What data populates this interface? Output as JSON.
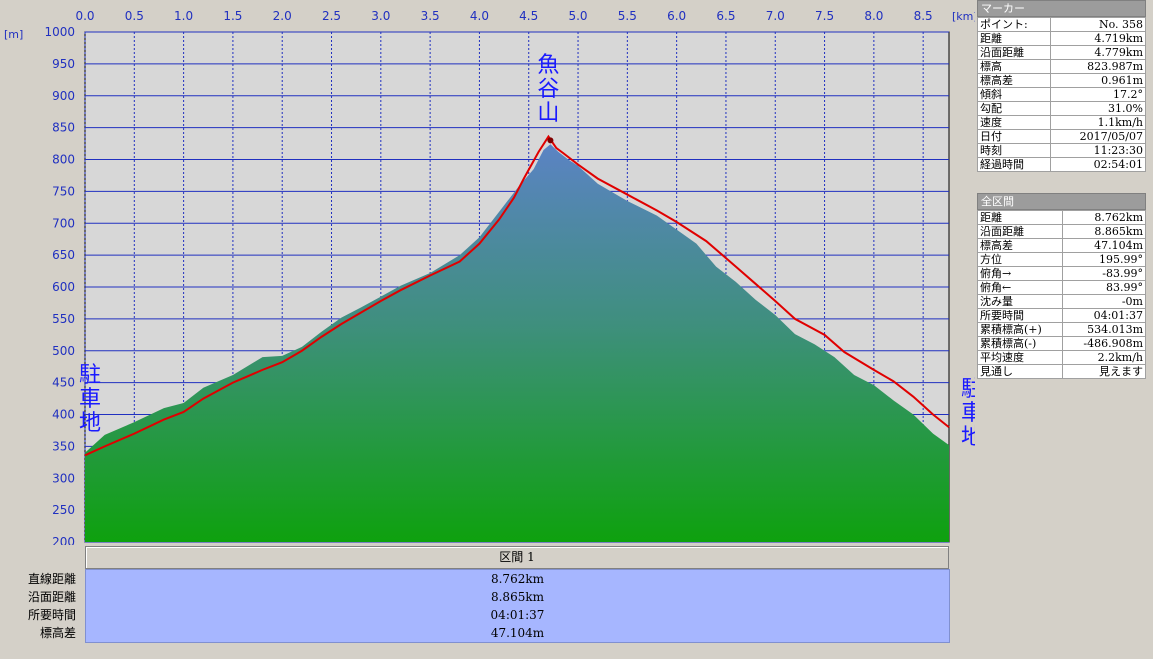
{
  "chart_data": {
    "type": "area",
    "x_unit": "[km]",
    "y_unit": "[m]",
    "xlim": [
      0,
      8.762
    ],
    "ylim": [
      200,
      1000
    ],
    "x_ticks": [
      "0.0",
      "0.5",
      "1.0",
      "1.5",
      "2.0",
      "2.5",
      "3.0",
      "3.5",
      "4.0",
      "4.5",
      "5.0",
      "5.5",
      "6.0",
      "6.5",
      "7.0",
      "7.5",
      "8.0",
      "8.5"
    ],
    "y_ticks": [
      "1000",
      "950",
      "900",
      "850",
      "800",
      "750",
      "700",
      "650",
      "600",
      "550",
      "500",
      "450",
      "400",
      "350",
      "300",
      "250",
      "200"
    ],
    "grid": true,
    "series": [
      {
        "name": "terrain",
        "color": "#2e8b57",
        "points": [
          [
            0,
            340
          ],
          [
            0.2,
            368
          ],
          [
            0.5,
            388
          ],
          [
            0.8,
            410
          ],
          [
            1.0,
            418
          ],
          [
            1.2,
            442
          ],
          [
            1.5,
            462
          ],
          [
            1.8,
            490
          ],
          [
            2.0,
            492
          ],
          [
            2.2,
            506
          ],
          [
            2.4,
            530
          ],
          [
            2.6,
            552
          ],
          [
            2.8,
            568
          ],
          [
            3.0,
            585
          ],
          [
            3.2,
            602
          ],
          [
            3.5,
            622
          ],
          [
            3.8,
            650
          ],
          [
            4.0,
            678
          ],
          [
            4.2,
            718
          ],
          [
            4.4,
            758
          ],
          [
            4.55,
            785
          ],
          [
            4.65,
            815
          ],
          [
            4.72,
            824
          ],
          [
            4.8,
            812
          ],
          [
            4.9,
            800
          ],
          [
            5.0,
            790
          ],
          [
            5.2,
            762
          ],
          [
            5.5,
            735
          ],
          [
            5.8,
            712
          ],
          [
            6.0,
            690
          ],
          [
            6.2,
            668
          ],
          [
            6.4,
            632
          ],
          [
            6.6,
            608
          ],
          [
            6.8,
            580
          ],
          [
            7.0,
            556
          ],
          [
            7.2,
            526
          ],
          [
            7.4,
            510
          ],
          [
            7.6,
            490
          ],
          [
            7.8,
            462
          ],
          [
            8.0,
            446
          ],
          [
            8.2,
            422
          ],
          [
            8.4,
            400
          ],
          [
            8.6,
            370
          ],
          [
            8.762,
            352
          ]
        ]
      },
      {
        "name": "track",
        "color": "#e00000",
        "points": [
          [
            0,
            336
          ],
          [
            0.2,
            350
          ],
          [
            0.5,
            370
          ],
          [
            0.8,
            392
          ],
          [
            1.0,
            404
          ],
          [
            1.2,
            425
          ],
          [
            1.5,
            450
          ],
          [
            1.8,
            470
          ],
          [
            2.0,
            482
          ],
          [
            2.2,
            500
          ],
          [
            2.4,
            522
          ],
          [
            2.6,
            542
          ],
          [
            2.8,
            560
          ],
          [
            3.0,
            578
          ],
          [
            3.2,
            595
          ],
          [
            3.5,
            618
          ],
          [
            3.8,
            640
          ],
          [
            4.0,
            668
          ],
          [
            4.2,
            706
          ],
          [
            4.35,
            740
          ],
          [
            4.45,
            770
          ],
          [
            4.6,
            812
          ],
          [
            4.7,
            836
          ],
          [
            4.78,
            818
          ],
          [
            4.85,
            810
          ],
          [
            5.0,
            792
          ],
          [
            5.2,
            770
          ],
          [
            5.5,
            745
          ],
          [
            5.8,
            720
          ],
          [
            6.0,
            702
          ],
          [
            6.3,
            672
          ],
          [
            6.6,
            632
          ],
          [
            6.8,
            605
          ],
          [
            7.0,
            578
          ],
          [
            7.2,
            550
          ],
          [
            7.5,
            525
          ],
          [
            7.7,
            498
          ],
          [
            8.0,
            470
          ],
          [
            8.2,
            452
          ],
          [
            8.4,
            428
          ],
          [
            8.6,
            400
          ],
          [
            8.762,
            380
          ]
        ]
      }
    ],
    "annotations": [
      {
        "text": "魚谷山",
        "x": 4.72,
        "position": "top"
      },
      {
        "text": "駐車地",
        "x": 0,
        "position": "left"
      },
      {
        "text": "駐車地",
        "x": 8.762,
        "position": "right"
      }
    ],
    "colors": {
      "plot_bg": "#d7d7d7",
      "grid": "#2030c0",
      "axis_text": "#2030c0",
      "label": "#1a1aff"
    }
  },
  "marker_panel": {
    "title": "マーカー",
    "rows": [
      {
        "k": "ポイント:",
        "v": "No. 358"
      },
      {
        "k": "距離",
        "v": "4.719km"
      },
      {
        "k": "沿面距離",
        "v": "4.779km"
      },
      {
        "k": "標高",
        "v": "823.987m"
      },
      {
        "k": "標高差",
        "v": "0.961m"
      },
      {
        "k": "傾斜",
        "v": "17.2°"
      },
      {
        "k": "勾配",
        "v": "31.0%"
      },
      {
        "k": "速度",
        "v": "1.1km/h"
      },
      {
        "k": "日付",
        "v": "2017/05/07"
      },
      {
        "k": "時刻",
        "v": "11:23:30"
      },
      {
        "k": "経過時間",
        "v": "02:54:01"
      }
    ]
  },
  "all_panel": {
    "title": "全区間",
    "rows": [
      {
        "k": "距離",
        "v": "8.762km"
      },
      {
        "k": "沿面距離",
        "v": "8.865km"
      },
      {
        "k": "標高差",
        "v": "47.104m"
      },
      {
        "k": "方位",
        "v": "195.99°"
      },
      {
        "k": "俯角→",
        "v": "-83.99°"
      },
      {
        "k": "俯角←",
        "v": "83.99°"
      },
      {
        "k": "沈み量",
        "v": "-0m"
      },
      {
        "k": "所要時間",
        "v": "04:01:37"
      },
      {
        "k": "累積標高(+)",
        "v": "534.013m"
      },
      {
        "k": "累積標高(-)",
        "v": "-486.908m"
      },
      {
        "k": "平均速度",
        "v": "2.2km/h"
      },
      {
        "k": "見通し",
        "v": "見えます"
      }
    ]
  },
  "section": {
    "header": "区間 1",
    "rows": [
      {
        "k": "直線距離",
        "v": "8.762km"
      },
      {
        "k": "沿面距離",
        "v": "8.865km"
      },
      {
        "k": "所要時間",
        "v": "04:01:37"
      },
      {
        "k": "標高差",
        "v": "47.104m"
      }
    ]
  }
}
